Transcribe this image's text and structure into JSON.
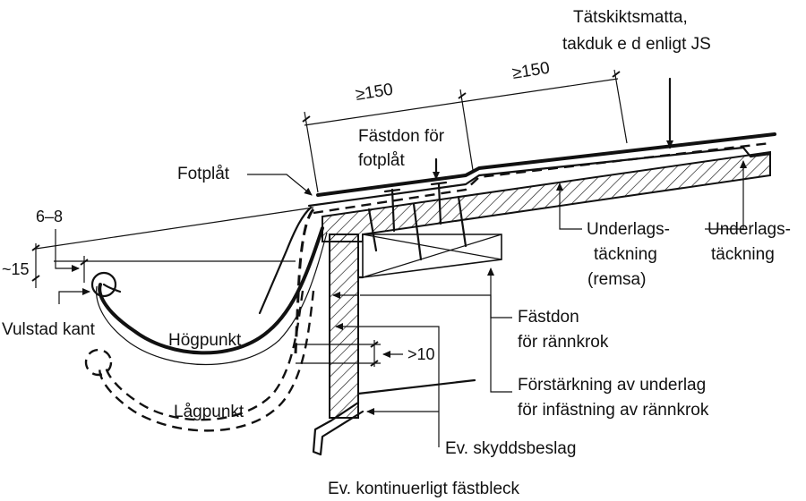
{
  "labels": {
    "tatskikt_1": "Tätskiktsmatta,",
    "tatskikt_2": "takduk e d enligt JS",
    "dim_150_left": "≥150",
    "dim_150_right": "≥150",
    "fastdon_fotplat_1": "Fästdon för",
    "fastdon_fotplat_2": "fotplåt",
    "fotplat": "Fotplåt",
    "dim_6_8": "6–8",
    "dim_15": "~15",
    "vulstad_kant": "Vulstad kant",
    "hogpunkt": "Högpunkt",
    "lagpunkt": "Lågpunkt",
    "dim_10": ">10",
    "underlag_remsa_1": "Underlags-",
    "underlag_remsa_2": "täckning",
    "underlag_remsa_3": "(remsa)",
    "underlag_1": "Underlags-",
    "underlag_2": "täckning",
    "fastdon_rannkrok_1": "Fästdon",
    "fastdon_rannkrok_2": "för rännkrok",
    "forstarkning_1": "Förstärkning av underlag",
    "forstarkning_2": "för infästning av rännkrok",
    "skyddsbeslag": "Ev. skyddsbeslag",
    "fastbleck": "Ev. kontinuerligt fästbleck"
  }
}
